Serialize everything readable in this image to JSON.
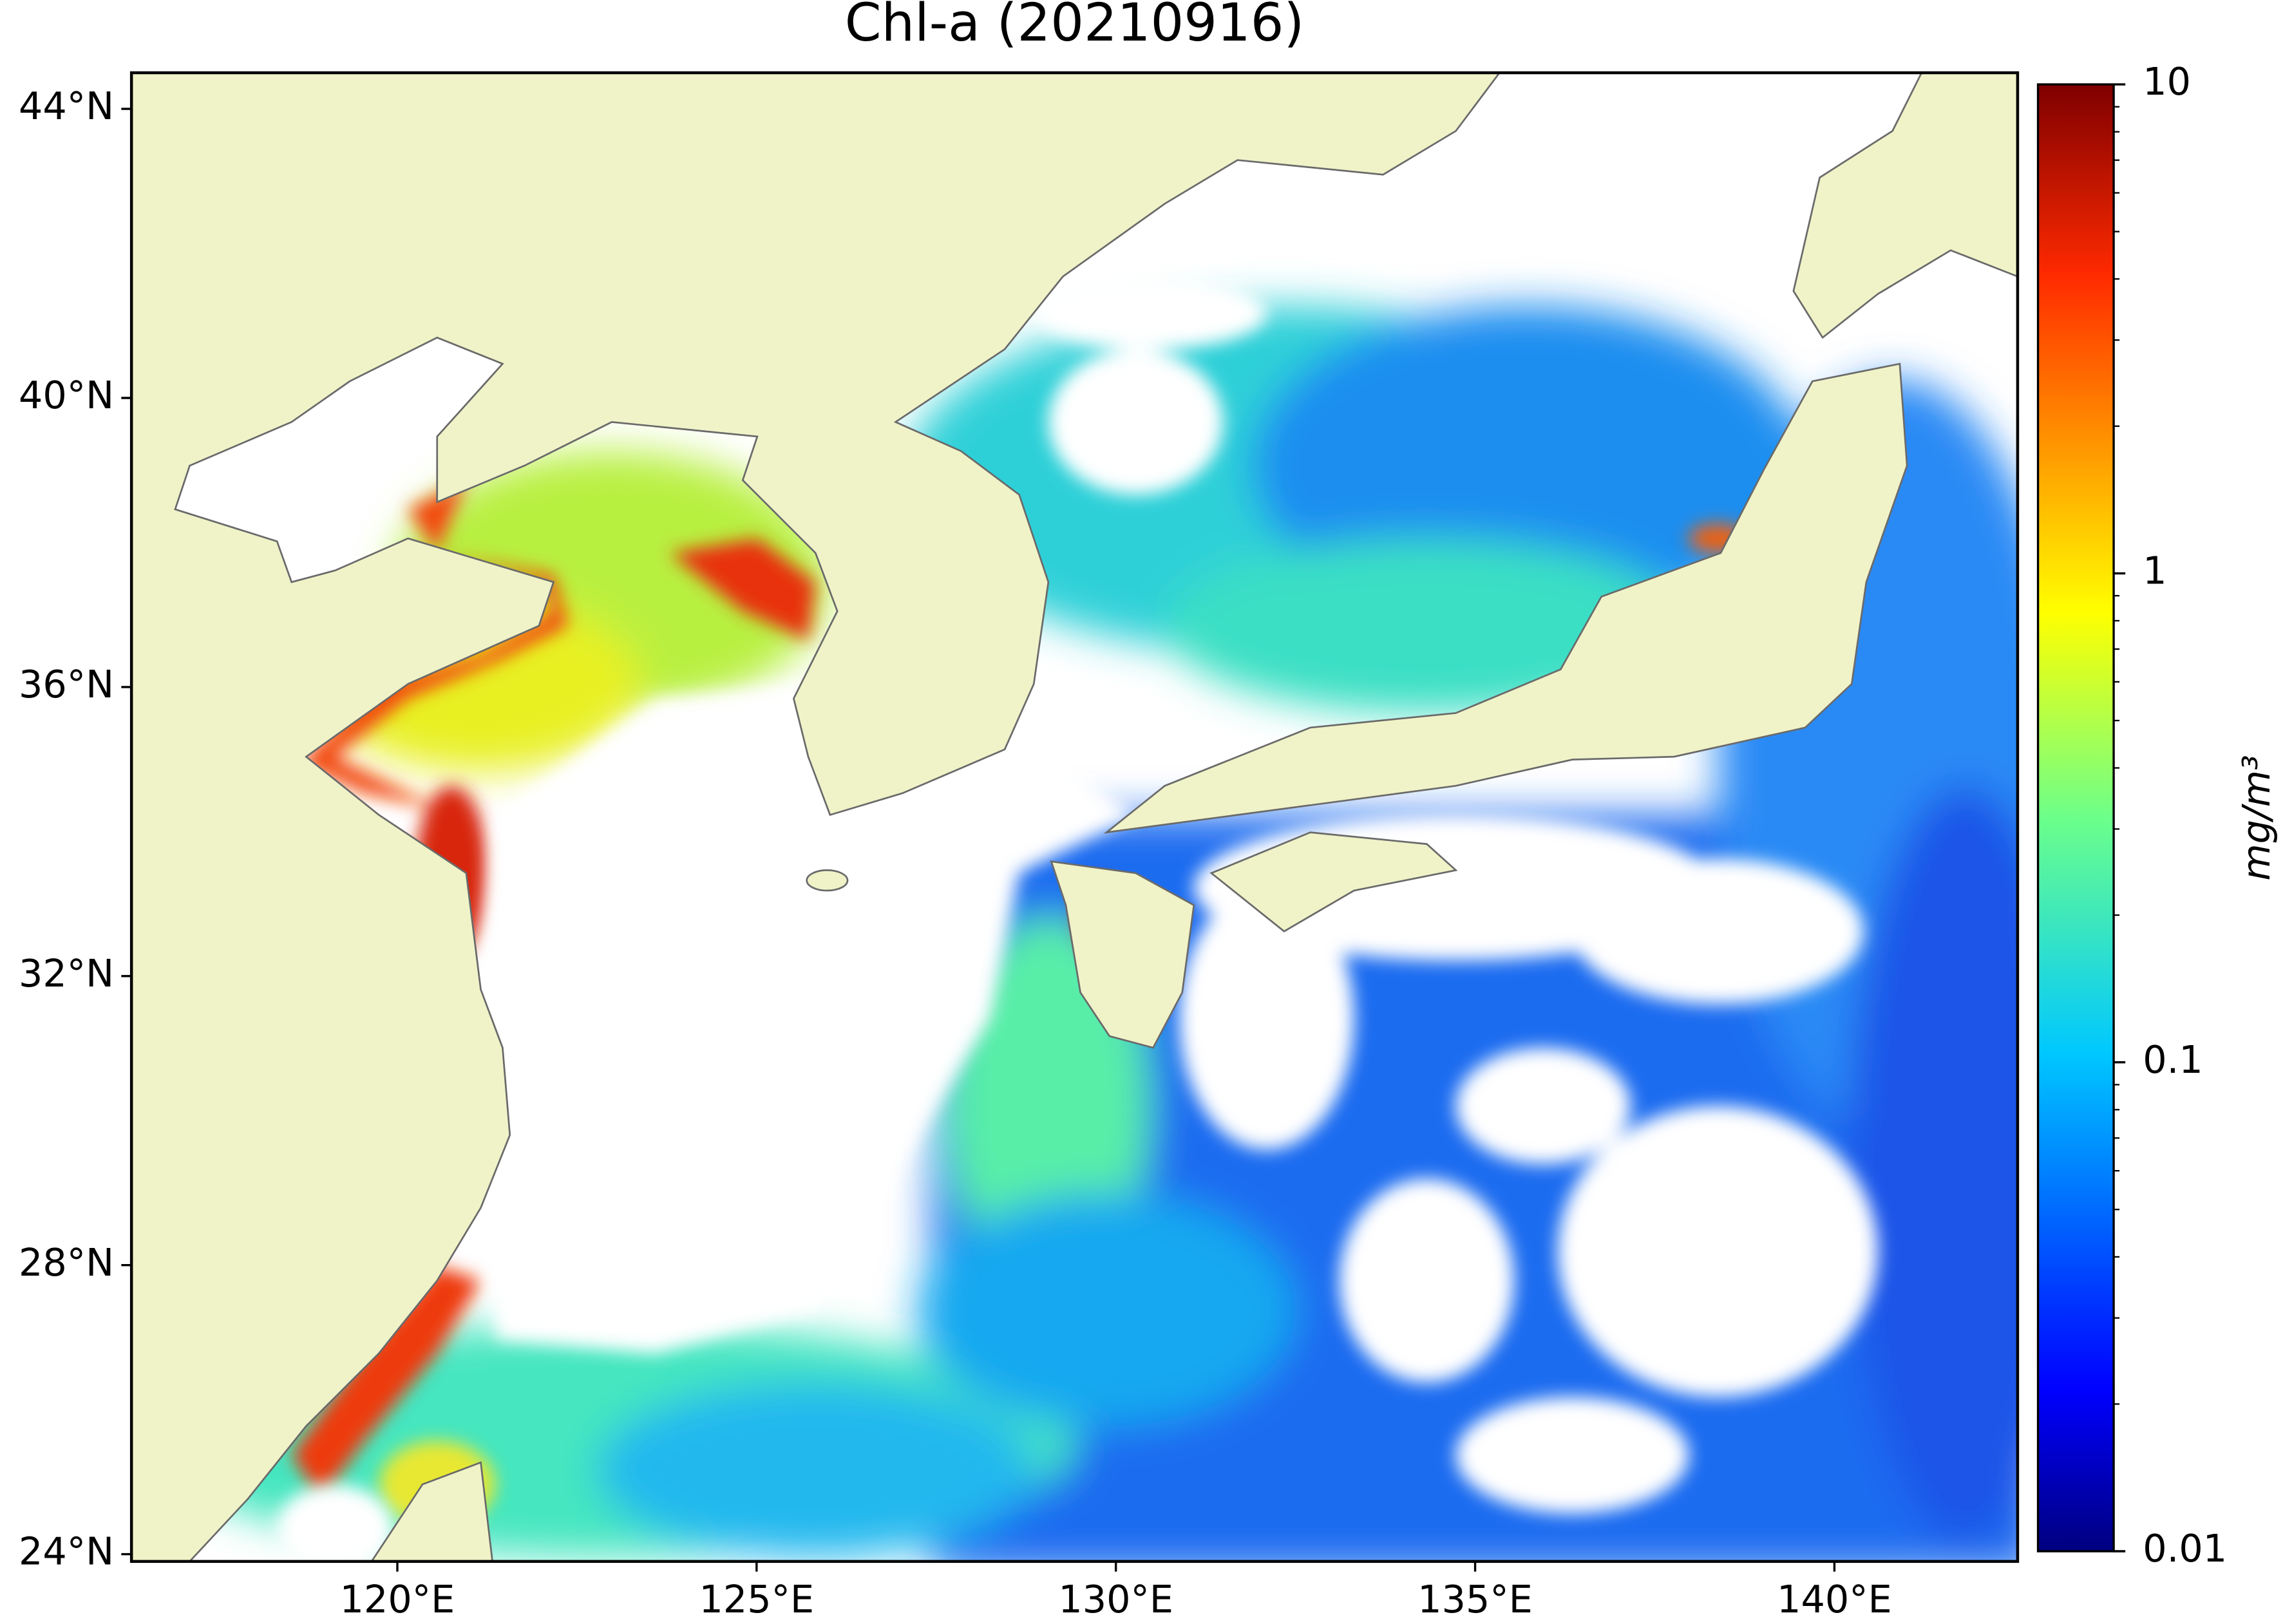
{
  "title": "Chl-a (20210916)",
  "map": {
    "xlim": [
      116.3,
      142.55
    ],
    "ylim": [
      23.9,
      44.5
    ],
    "xticks": [
      {
        "value": 120,
        "label": "120°E"
      },
      {
        "value": 125,
        "label": "125°E"
      },
      {
        "value": 130,
        "label": "130°E"
      },
      {
        "value": 135,
        "label": "135°E"
      },
      {
        "value": 140,
        "label": "140°E"
      }
    ],
    "yticks": [
      {
        "value": 24,
        "label": "24°N"
      },
      {
        "value": 28,
        "label": "28°N"
      },
      {
        "value": 32,
        "label": "32°N"
      },
      {
        "value": 36,
        "label": "36°N"
      },
      {
        "value": 40,
        "label": "40°N"
      },
      {
        "value": 44,
        "label": "44°N"
      }
    ]
  },
  "colorbar": {
    "label": "mg/m³",
    "scale": "log",
    "lim": [
      0.01,
      10
    ],
    "ticks": [
      0.01,
      0.1,
      1,
      10
    ]
  }
}
